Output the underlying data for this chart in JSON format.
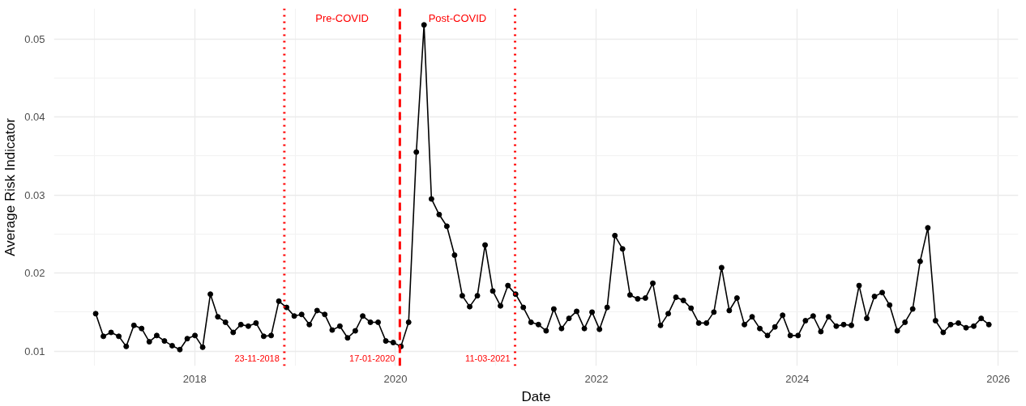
{
  "chart_data": {
    "type": "line",
    "xlabel": "Date",
    "ylabel": "Average Risk Indicator",
    "x": [
      "2017-01-06",
      "2017-02-03",
      "2017-03-03",
      "2017-03-31",
      "2017-04-27",
      "2017-05-25",
      "2017-06-22",
      "2017-07-20",
      "2017-08-16",
      "2017-09-13",
      "2017-10-11",
      "2017-11-08",
      "2017-12-05",
      "2018-01-02",
      "2018-01-30",
      "2018-02-27",
      "2018-03-26",
      "2018-04-23",
      "2018-05-21",
      "2018-06-18",
      "2018-07-15",
      "2018-08-12",
      "2018-09-09",
      "2018-10-06",
      "2018-11-03",
      "2018-12-01",
      "2018-12-29",
      "2019-01-25",
      "2019-02-22",
      "2019-03-22",
      "2019-04-19",
      "2019-05-16",
      "2019-06-13",
      "2019-07-11",
      "2019-08-08",
      "2019-09-04",
      "2019-10-02",
      "2019-10-30",
      "2019-11-27",
      "2019-12-24",
      "2020-01-21",
      "2020-02-18",
      "2020-03-17",
      "2020-04-14",
      "2020-05-11",
      "2020-06-08",
      "2020-07-06",
      "2020-08-03",
      "2020-08-31",
      "2020-09-27",
      "2020-10-25",
      "2020-11-22",
      "2020-12-20",
      "2021-01-17",
      "2021-02-13",
      "2021-03-13",
      "2021-04-10",
      "2021-05-08",
      "2021-06-04",
      "2021-07-02",
      "2021-07-30",
      "2021-08-27",
      "2021-09-23",
      "2021-10-21",
      "2021-11-18",
      "2021-12-16",
      "2022-01-12",
      "2022-02-09",
      "2022-03-09",
      "2022-04-06",
      "2022-05-03",
      "2022-05-31",
      "2022-06-28",
      "2022-07-25",
      "2022-08-22",
      "2022-09-19",
      "2022-10-17",
      "2022-11-13",
      "2022-12-11",
      "2023-01-08",
      "2023-02-05",
      "2023-03-04",
      "2023-04-01",
      "2023-04-29",
      "2023-05-27",
      "2023-06-23",
      "2023-07-21",
      "2023-08-18",
      "2023-09-15",
      "2023-10-12",
      "2023-11-09",
      "2023-12-07",
      "2024-01-04",
      "2024-01-31",
      "2024-02-28",
      "2024-03-27",
      "2024-04-24",
      "2024-05-22",
      "2024-06-18",
      "2024-07-16",
      "2024-08-13",
      "2024-09-10",
      "2024-10-08",
      "2024-11-05",
      "2024-12-02",
      "2024-12-30",
      "2025-01-27",
      "2025-02-24",
      "2025-03-23",
      "2025-04-20",
      "2025-05-18",
      "2025-06-15",
      "2025-07-12",
      "2025-08-09",
      "2025-09-06",
      "2025-10-04",
      "2025-10-31",
      "2025-11-28"
    ],
    "series": [
      {
        "color": "#000000",
        "values": [
          0.0148,
          0.0119,
          0.0124,
          0.0119,
          0.0106,
          0.0133,
          0.0129,
          0.0112,
          0.012,
          0.0113,
          0.0107,
          0.0102,
          0.0116,
          0.012,
          0.0105,
          0.0173,
          0.0144,
          0.0137,
          0.0124,
          0.0134,
          0.0132,
          0.0136,
          0.0119,
          0.012,
          0.0164,
          0.0156,
          0.0145,
          0.0147,
          0.0134,
          0.0152,
          0.0147,
          0.0127,
          0.0132,
          0.0117,
          0.0126,
          0.0145,
          0.0137,
          0.0137,
          0.0113,
          0.0111,
          0.0106,
          0.0137,
          0.0355,
          0.0518,
          0.0295,
          0.0275,
          0.026,
          0.0223,
          0.0171,
          0.0157,
          0.0171,
          0.0236,
          0.0177,
          0.0158,
          0.0184,
          0.0173,
          0.0156,
          0.0137,
          0.0134,
          0.0126,
          0.0154,
          0.0129,
          0.0142,
          0.0151,
          0.0129,
          0.015,
          0.0128,
          0.0156,
          0.0248,
          0.0231,
          0.0172,
          0.0167,
          0.0168,
          0.0187,
          0.0133,
          0.0148,
          0.0169,
          0.0165,
          0.0155,
          0.0136,
          0.0136,
          0.015,
          0.0207,
          0.0152,
          0.0168,
          0.0134,
          0.0144,
          0.0129,
          0.012,
          0.0131,
          0.0146,
          0.012,
          0.012,
          0.0139,
          0.0145,
          0.0125,
          0.0144,
          0.0132,
          0.0134,
          0.0133,
          0.0184,
          0.0142,
          0.017,
          0.0175,
          0.0159,
          0.0126,
          0.0137,
          0.0154,
          0.0215,
          0.0258,
          0.0139,
          0.0124,
          0.0134,
          0.0136,
          0.013,
          0.0132,
          0.0142,
          0.0134
        ]
      }
    ],
    "xlim": [
      "2016-08-07",
      "2026-03-15"
    ],
    "ylim": [
      0.0081,
      0.0539
    ],
    "xticks": [
      "2018",
      "2020",
      "2022",
      "2024",
      "2026"
    ],
    "yticks": [
      0.01,
      0.02,
      0.03,
      0.04,
      0.05
    ],
    "grid": true,
    "marker": "circle",
    "line_style": "solid",
    "ref_lines": [
      {
        "axis": "x",
        "value": "2018-11-23",
        "label": "23-11-2018",
        "color": "#ff0000",
        "line_style": "dotted"
      },
      {
        "axis": "x",
        "value": "2020-01-17",
        "label": "17-01-2020",
        "color": "#ff0000",
        "line_style": "dashed"
      },
      {
        "axis": "x",
        "value": "2021-03-11",
        "label": "11-03-2021",
        "color": "#ff0000",
        "line_style": "dotted"
      }
    ],
    "annotations": [
      "Pre-COVID",
      "Post-COVID"
    ]
  }
}
